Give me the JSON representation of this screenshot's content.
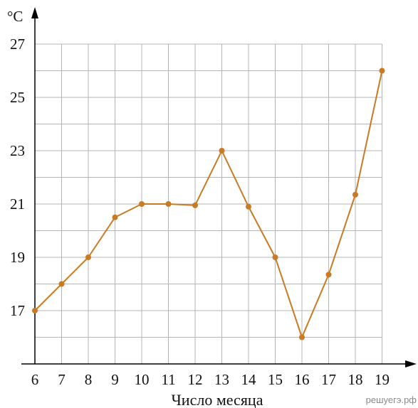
{
  "chart_data": {
    "type": "line",
    "y_unit": "°C",
    "xlabel": "Число месяца",
    "x": [
      6,
      7,
      8,
      9,
      10,
      11,
      12,
      13,
      14,
      15,
      16,
      17,
      18,
      19
    ],
    "values": [
      17,
      18,
      19,
      20.5,
      21,
      21,
      20.95,
      23,
      20.9,
      19,
      16,
      18.35,
      21.35,
      26
    ],
    "x_ticks": [
      "6",
      "7",
      "8",
      "9",
      "10",
      "11",
      "12",
      "13",
      "14",
      "15",
      "16",
      "17",
      "18",
      "19"
    ],
    "y_ticks": [
      "17",
      "19",
      "21",
      "23",
      "25",
      "27"
    ],
    "ylim": [
      15,
      27
    ],
    "xlim": [
      6,
      19
    ],
    "grid": true,
    "line_color": "#c97a24",
    "point_color": "#c97a24"
  },
  "watermark": "решуегэ.рф"
}
